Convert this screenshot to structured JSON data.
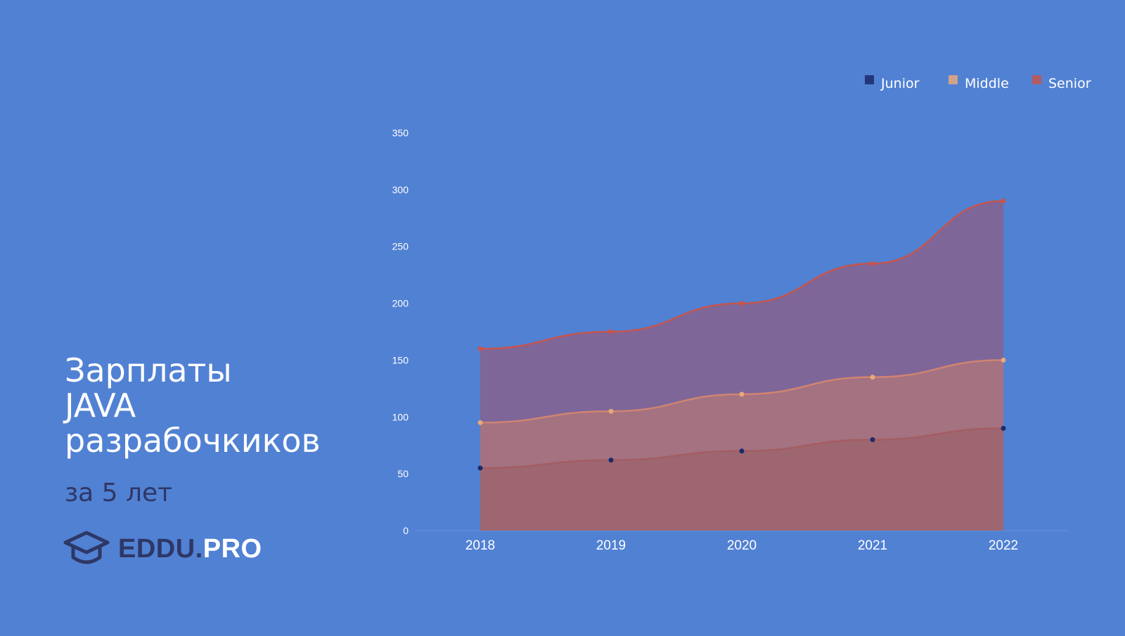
{
  "slide": {
    "title_lines": [
      "Зарплаты",
      "JAVA",
      "разрабочкиков"
    ],
    "subtitle": "за 5 лет",
    "logo": {
      "part1": "EDDU",
      "dot": ".",
      "part2": "PRO",
      "icon": "graduation-cap-icon"
    }
  },
  "colors": {
    "background": "#5181d3",
    "junior": "#1c2a6b",
    "middle": "#e8a87c",
    "senior": "#c4554f",
    "senior_fill": "#7e6699",
    "middle_fill": "#a47281",
    "junior_fill": "#9d6670"
  },
  "chart_data": {
    "type": "area",
    "x": [
      "2018",
      "2019",
      "2020",
      "2021",
      "2022"
    ],
    "series": [
      {
        "name": "Junior",
        "values": [
          55,
          62,
          70,
          80,
          90
        ]
      },
      {
        "name": "Middle",
        "values": [
          95,
          105,
          120,
          135,
          150
        ]
      },
      {
        "name": "Senior",
        "values": [
          160,
          175,
          200,
          235,
          290
        ]
      }
    ],
    "ylim": [
      0,
      350
    ],
    "yticks": [
      "0",
      "50",
      "100",
      "150",
      "200",
      "250",
      "300",
      "350"
    ],
    "legend": "top-right",
    "grid": false,
    "xlabel": "",
    "ylabel": ""
  }
}
